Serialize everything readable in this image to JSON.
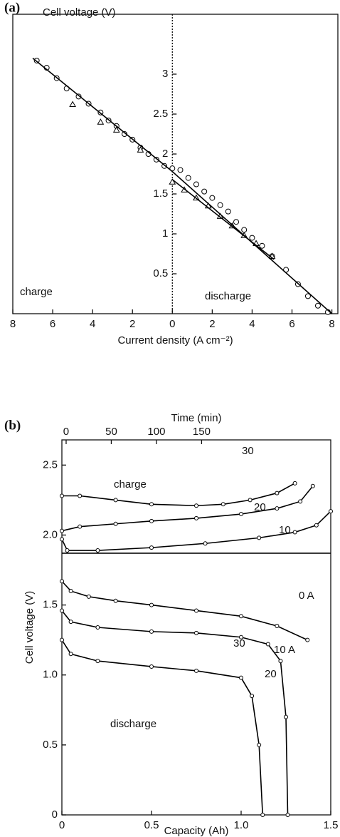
{
  "chart_data": [
    {
      "type": "scatter",
      "panel_label": "(a)",
      "ylabel": "Cell voltage (V)",
      "xlabel": "Current density (A cm⁻²)",
      "annotations": [
        "charge",
        "discharge"
      ],
      "xlim": [
        -8,
        8.3
      ],
      "xticks": [
        {
          "value": -8,
          "label": "8"
        },
        {
          "value": -6,
          "label": "6"
        },
        {
          "value": -4,
          "label": "4"
        },
        {
          "value": -2,
          "label": "2"
        },
        0,
        2,
        4,
        6,
        8
      ],
      "ylim": [
        0,
        3.75
      ],
      "yticks": [
        0.5,
        1,
        1.5,
        2,
        2.5,
        3
      ],
      "series": [
        {
          "marker": "circle",
          "color": "#000000",
          "x": [
            -6.8,
            -6.3,
            -5.8,
            -5.3,
            -4.7,
            -4.2,
            -3.6,
            -3.2,
            -2.8,
            -2.4,
            -2,
            -1.6,
            -1.2,
            -0.8,
            -0.4,
            0,
            0.4,
            0.8,
            1.2,
            1.6,
            2,
            2.4,
            2.8,
            3.2,
            3.6,
            4,
            4.5,
            5,
            5.7,
            6.3,
            6.8,
            7.3,
            7.8
          ],
          "values": [
            3.17,
            3.08,
            2.95,
            2.82,
            2.72,
            2.63,
            2.52,
            2.42,
            2.35,
            2.25,
            2.18,
            2.08,
            2.0,
            1.93,
            1.85,
            1.82,
            1.8,
            1.7,
            1.62,
            1.53,
            1.45,
            1.36,
            1.28,
            1.15,
            1.05,
            0.95,
            0.85,
            0.72,
            0.55,
            0.37,
            0.22,
            0.1,
            0.02
          ]
        },
        {
          "marker": "triangle",
          "color": "#000000",
          "x": [
            -5,
            -3.6,
            -2.8,
            -1.6,
            0,
            0.6,
            1.2,
            1.8,
            2.4,
            3,
            3.6,
            4.2,
            5
          ],
          "values": [
            2.62,
            2.4,
            2.3,
            2.05,
            1.65,
            1.55,
            1.45,
            1.35,
            1.22,
            1.1,
            0.98,
            0.88,
            0.72
          ]
        },
        {
          "marker": "none",
          "color": "#000000",
          "x": [
            -7,
            0,
            8
          ],
          "values": [
            3.2,
            1.78,
            0
          ]
        },
        {
          "marker": "none",
          "color": "#000000",
          "x": [
            0,
            5.1
          ],
          "values": [
            1.68,
            0.68
          ]
        }
      ]
    },
    {
      "type": "line",
      "panel_label": "(b)",
      "ylabel": "Cell voltage (V)",
      "xlabel": "Capacity (Ah)",
      "x2label": "Time (min)",
      "annotations": [
        "charge",
        "discharge"
      ],
      "xlim": [
        0,
        1.5
      ],
      "xticks": [
        0,
        0.5,
        {
          "value": 1,
          "label": "1.0"
        },
        1.5
      ],
      "x2lim": [
        -4.7,
        293
      ],
      "x2ticks": [
        0,
        50,
        100,
        150
      ],
      "ylim": [
        0,
        2.68
      ],
      "yticks": [
        0,
        0.5,
        {
          "value": 1,
          "label": "1.0"
        },
        1.5,
        {
          "value": 2,
          "label": "2.0"
        },
        2.5
      ],
      "series": [
        {
          "name": "30",
          "marker": "circle",
          "color": "#000000",
          "x": [
            0,
            0.1,
            0.3,
            0.5,
            0.75,
            0.9,
            1.05,
            1.2,
            1.3
          ],
          "values": [
            2.28,
            2.28,
            2.25,
            2.22,
            2.21,
            2.22,
            2.25,
            2.3,
            2.37
          ]
        },
        {
          "name": "20",
          "marker": "circle",
          "color": "#000000",
          "x": [
            0,
            0.1,
            0.3,
            0.5,
            0.75,
            1.0,
            1.2,
            1.33,
            1.4
          ],
          "values": [
            2.03,
            2.06,
            2.08,
            2.1,
            2.12,
            2.15,
            2.19,
            2.24,
            2.35
          ]
        },
        {
          "name": "10",
          "marker": "circle",
          "color": "#000000",
          "x": [
            0,
            0.03,
            0.2,
            0.5,
            0.8,
            1.1,
            1.3,
            1.42,
            1.5
          ],
          "values": [
            1.97,
            1.89,
            1.89,
            1.91,
            1.94,
            1.98,
            2.02,
            2.07,
            2.17
          ]
        },
        {
          "name": "0 A",
          "marker": "none",
          "color": "#000000",
          "x": [
            0,
            1.5
          ],
          "values": [
            1.87,
            1.87
          ]
        },
        {
          "name": "10 A",
          "marker": "circle",
          "color": "#000000",
          "x": [
            0,
            0.05,
            0.15,
            0.3,
            0.5,
            0.75,
            1.0,
            1.2,
            1.37
          ],
          "values": [
            1.67,
            1.6,
            1.56,
            1.53,
            1.5,
            1.46,
            1.42,
            1.35,
            1.25
          ]
        },
        {
          "name": "20",
          "marker": "circle",
          "color": "#000000",
          "x": [
            0,
            0.05,
            0.2,
            0.5,
            0.75,
            1.0,
            1.15,
            1.22,
            1.25,
            1.26
          ],
          "values": [
            1.46,
            1.38,
            1.34,
            1.31,
            1.3,
            1.27,
            1.22,
            1.1,
            0.7,
            0
          ]
        },
        {
          "name": "30",
          "marker": "circle",
          "color": "#000000",
          "x": [
            0,
            0.05,
            0.2,
            0.5,
            0.75,
            1.0,
            1.06,
            1.1,
            1.12
          ],
          "values": [
            1.25,
            1.15,
            1.1,
            1.06,
            1.03,
            0.98,
            0.85,
            0.5,
            0
          ]
        }
      ]
    }
  ]
}
